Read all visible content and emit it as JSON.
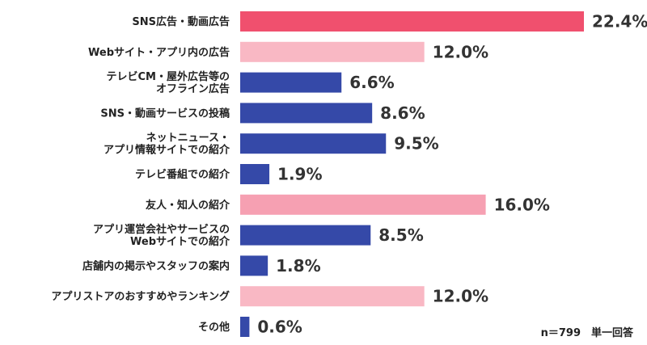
{
  "chart_data": {
    "type": "bar",
    "orientation": "horizontal",
    "categories": [
      [
        "SNS広告・動画広告"
      ],
      [
        "Webサイト・アプリ内の広告"
      ],
      [
        "テレビCM・屋外広告等の",
        "オフライン広告"
      ],
      [
        "SNS・動画サービスの投稿"
      ],
      [
        "ネットニュース・",
        "アプリ情報サイトでの紹介"
      ],
      [
        "テレビ番組での紹介"
      ],
      [
        "友人・知人の紹介"
      ],
      [
        "アプリ運営会社やサービスの",
        "Webサイトでの紹介"
      ],
      [
        "店舗内の掲示やスタッフの案内"
      ],
      [
        "アプリストアのおすすめやランキング"
      ],
      [
        "その他"
      ]
    ],
    "values": [
      22.4,
      12.0,
      6.6,
      8.6,
      9.5,
      1.9,
      16.0,
      8.5,
      1.8,
      12.0,
      0.6
    ],
    "value_labels": [
      "22.4%",
      "12.0%",
      "6.6%",
      "8.6%",
      "9.5%",
      "1.9%",
      "16.0%",
      "8.5%",
      "1.8%",
      "12.0%",
      "0.6%"
    ],
    "bar_colors": [
      "#f0506e",
      "#f9b8c4",
      "#3549a8",
      "#3549a8",
      "#3549a8",
      "#3549a8",
      "#f6a0b2",
      "#3549a8",
      "#3549a8",
      "#f9b8c4",
      "#3549a8"
    ],
    "xlim": [
      0,
      22.4
    ],
    "grid": false,
    "legend": "none"
  },
  "footnote": "n＝799　単一回答"
}
